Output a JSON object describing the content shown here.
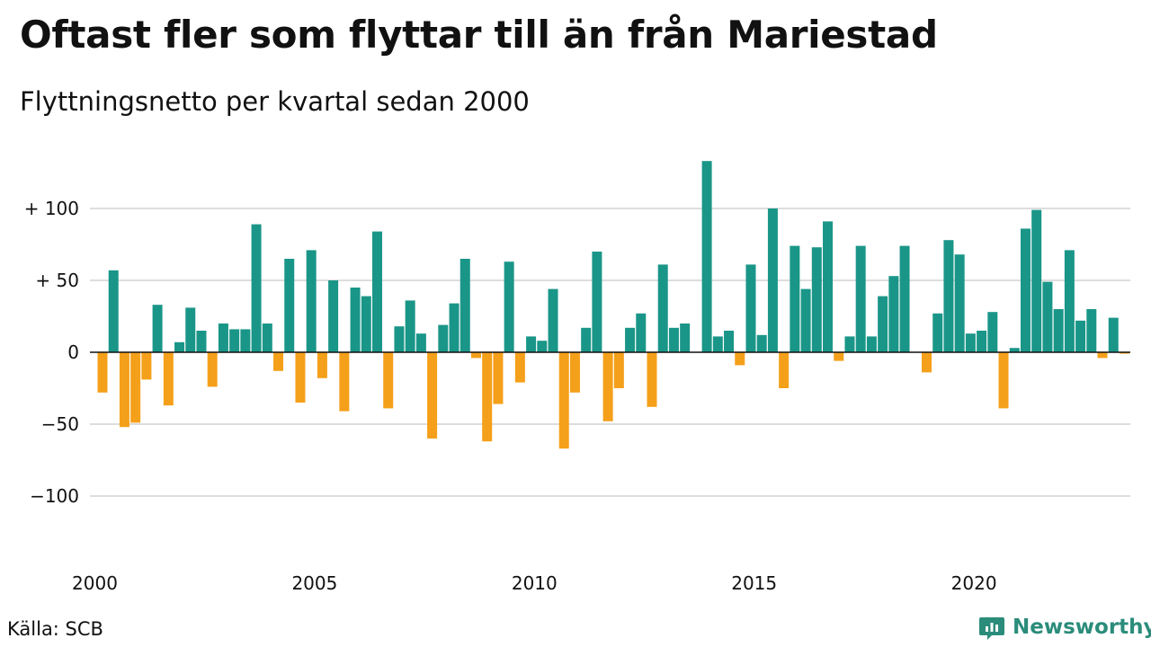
{
  "title": "Oftast fler som flyttar till än från Mariestad",
  "subtitle": "Flyttningsnetto per kvartal sedan 2000",
  "source": "Källa: SCB",
  "brand": {
    "name": "Newsworthy",
    "icon": "newsworthy-logo-icon"
  },
  "colors": {
    "positive": "#1a9688",
    "negative": "#f5a01a",
    "grid": "#dddddd",
    "brand": "#2b8c7b"
  },
  "chart_data": {
    "type": "bar",
    "x_start": "2000 Q1",
    "x_ticks": [
      {
        "label": "2000",
        "quarter_index": 0
      },
      {
        "label": "2005",
        "quarter_index": 20
      },
      {
        "label": "2010",
        "quarter_index": 40
      },
      {
        "label": "2015",
        "quarter_index": 60
      },
      {
        "label": "2020",
        "quarter_index": 80
      }
    ],
    "y_ticks": [
      {
        "label": "+ 100",
        "value": 100
      },
      {
        "label": "+  50",
        "value": 50
      },
      {
        "label": "0",
        "value": 0
      },
      {
        "label": "−50",
        "value": -50
      },
      {
        "label": "−100",
        "value": -100
      }
    ],
    "ylim": [
      -135,
      135
    ],
    "grid": true,
    "values": [
      -28,
      57,
      -52,
      -49,
      -19,
      33,
      -37,
      7,
      31,
      15,
      -24,
      20,
      16,
      16,
      89,
      20,
      -13,
      65,
      -35,
      71,
      -18,
      50,
      -41,
      45,
      39,
      84,
      -39,
      18,
      36,
      13,
      -60,
      19,
      34,
      65,
      -4,
      -62,
      -36,
      63,
      -21,
      11,
      8,
      44,
      -67,
      -28,
      17,
      70,
      -48,
      -25,
      17,
      27,
      -38,
      61,
      17,
      20,
      0,
      133,
      11,
      15,
      -9,
      61,
      12,
      100,
      -25,
      74,
      44,
      73,
      91,
      -6,
      11,
      74,
      11,
      39,
      53,
      74,
      0,
      -14,
      27,
      78,
      68,
      13,
      15,
      28,
      -39,
      3,
      86,
      99,
      49,
      30,
      71,
      22,
      30,
      -4,
      24,
      -1
    ]
  }
}
